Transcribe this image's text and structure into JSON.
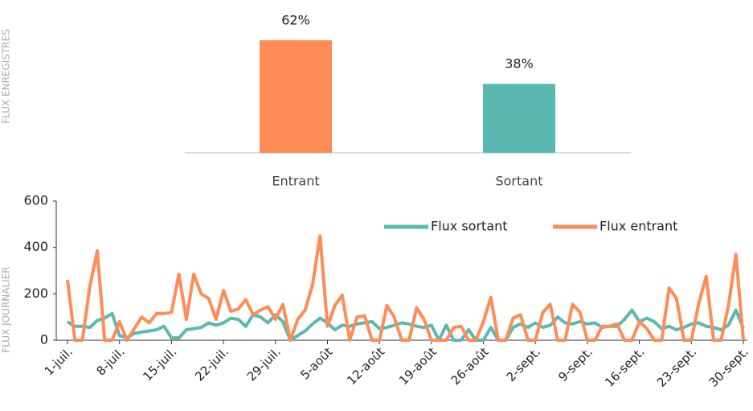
{
  "chart_data": [
    {
      "type": "bar",
      "y_label": "FLUX ENREGISTRES",
      "categories": [
        "Entrant",
        "Sortant"
      ],
      "values": [
        62,
        38
      ],
      "value_labels": [
        "62%",
        "38%"
      ],
      "colors": [
        "#ff8c57",
        "#5bb8b2"
      ],
      "ylim": [
        0,
        70
      ]
    },
    {
      "type": "line",
      "y_label": "FLUX JOURNALIER",
      "legend": "top-right",
      "categories": [
        "1-juil.",
        null,
        null,
        null,
        null,
        null,
        null,
        "8-juil.",
        null,
        null,
        null,
        null,
        null,
        null,
        "15-juil.",
        null,
        null,
        null,
        null,
        null,
        null,
        "22-juil.",
        null,
        null,
        null,
        null,
        null,
        null,
        "29-juil.",
        null,
        null,
        null,
        null,
        null,
        null,
        "5-août",
        null,
        null,
        null,
        null,
        null,
        null,
        "12-août",
        null,
        null,
        null,
        null,
        null,
        null,
        "19-août",
        null,
        null,
        null,
        null,
        null,
        null,
        "26-août",
        null,
        null,
        null,
        null,
        null,
        null,
        "2-sept.",
        null,
        null,
        null,
        null,
        null,
        null,
        "9-sept.",
        null,
        null,
        null,
        null,
        null,
        null,
        "16-sept.",
        null,
        null,
        null,
        null,
        null,
        null,
        "23-sept.",
        null,
        null,
        null,
        null,
        null,
        null,
        "30-sept."
      ],
      "series": [
        {
          "name": "Flux sortant",
          "color": "#5bb8b2",
          "values": [
            80,
            60,
            60,
            55,
            85,
            95,
            115,
            20,
            10,
            30,
            35,
            40,
            45,
            60,
            10,
            10,
            45,
            50,
            55,
            75,
            65,
            75,
            95,
            90,
            60,
            110,
            100,
            75,
            110,
            80,
            0,
            20,
            40,
            70,
            95,
            75,
            45,
            65,
            60,
            70,
            75,
            80,
            50,
            55,
            65,
            75,
            70,
            60,
            55,
            65,
            0,
            65,
            0,
            0,
            45,
            0,
            0,
            55,
            0,
            0,
            55,
            70,
            55,
            75,
            55,
            65,
            100,
            75,
            70,
            80,
            70,
            75,
            55,
            60,
            60,
            90,
            130,
            80,
            95,
            80,
            50,
            60,
            45,
            55,
            70,
            75,
            60,
            55,
            45,
            65,
            130,
            50
          ]
        },
        {
          "name": "Flux entrant",
          "color": "#ff8c57",
          "values": [
            260,
            0,
            0,
            230,
            385,
            0,
            0,
            80,
            0,
            50,
            100,
            75,
            115,
            115,
            120,
            285,
            90,
            285,
            200,
            180,
            90,
            215,
            125,
            135,
            175,
            110,
            130,
            145,
            90,
            155,
            0,
            90,
            130,
            240,
            450,
            60,
            150,
            195,
            0,
            100,
            105,
            0,
            0,
            150,
            100,
            0,
            0,
            140,
            90,
            0,
            0,
            0,
            55,
            60,
            0,
            0,
            80,
            185,
            0,
            0,
            95,
            110,
            0,
            0,
            120,
            155,
            0,
            0,
            155,
            120,
            0,
            0,
            60,
            60,
            70,
            0,
            0,
            80,
            50,
            0,
            0,
            225,
            180,
            0,
            0,
            160,
            275,
            0,
            0,
            150,
            370,
            0
          ]
        }
      ],
      "ylim": [
        0,
        600
      ],
      "yticks": [
        0,
        200,
        400,
        600
      ]
    }
  ]
}
